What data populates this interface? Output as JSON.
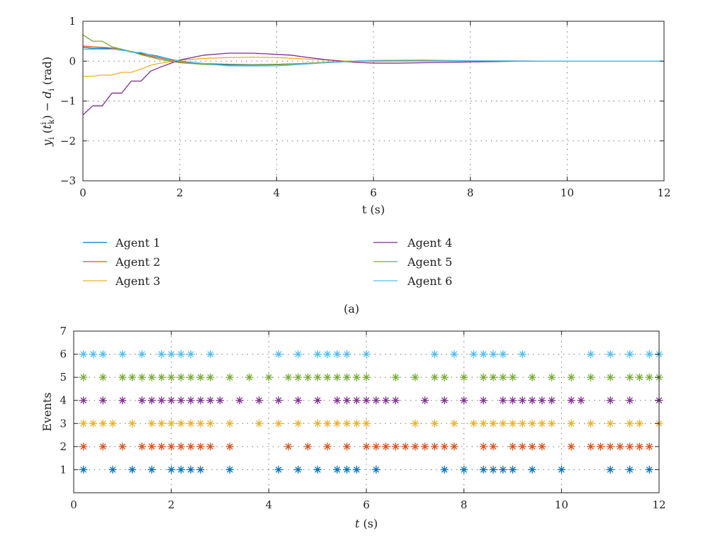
{
  "chart_data": [
    {
      "type": "line",
      "panel_caption": "(a)",
      "xlabel": "t (s)",
      "ylabel": "y_i(t_k^i) − d_i (rad)",
      "ylabel_parts": {
        "y": "y",
        "i": "i",
        "t": "t",
        "sup": "i",
        "sub": "k",
        "rest": ") − ",
        "d": "d",
        "di": "i",
        "unit": " (rad)"
      },
      "xlim": [
        0,
        12
      ],
      "ylim": [
        -3,
        1
      ],
      "xticks": [
        0,
        2,
        4,
        6,
        8,
        10,
        12
      ],
      "yticks": [
        1,
        0,
        -1,
        -2,
        -3
      ],
      "ytick_labels": [
        "1",
        "0",
        "−1",
        "−2",
        "−3"
      ],
      "grid": true,
      "legend_position": "below, two columns",
      "series": [
        {
          "name": "Agent 1",
          "color": "#0072BD",
          "x": [
            0,
            0.2,
            0.5,
            0.8,
            1.0,
            1.2,
            1.5,
            1.7,
            2.0,
            2.5,
            3.0,
            3.5,
            4.0,
            4.5,
            5.0,
            5.5,
            6.0,
            7.0,
            8.0,
            10.0,
            12.0
          ],
          "y": [
            0.35,
            0.32,
            0.32,
            0.28,
            0.24,
            0.2,
            0.14,
            0.08,
            0.0,
            -0.06,
            -0.08,
            -0.09,
            -0.08,
            -0.06,
            -0.03,
            0.0,
            0.01,
            0.01,
            0.0,
            0.0,
            0.0
          ]
        },
        {
          "name": "Agent 2",
          "color": "#D95319",
          "x": [
            0,
            0.2,
            0.5,
            0.8,
            1.0,
            1.2,
            1.5,
            1.7,
            2.0,
            2.5,
            3.0,
            3.5,
            4.0,
            4.5,
            5.0,
            5.5,
            6.0,
            7.0,
            8.0,
            10.0,
            12.0
          ],
          "y": [
            0.38,
            0.36,
            0.34,
            0.3,
            0.24,
            0.18,
            0.1,
            0.05,
            -0.02,
            -0.08,
            -0.1,
            -0.1,
            -0.09,
            -0.07,
            -0.04,
            -0.01,
            0.01,
            0.01,
            0.0,
            0.0,
            0.0
          ]
        },
        {
          "name": "Agent 3",
          "color": "#EDB120",
          "x": [
            0,
            0.2,
            0.4,
            0.6,
            0.8,
            1.0,
            1.2,
            1.4,
            1.6,
            2.0,
            2.5,
            3.0,
            3.5,
            4.0,
            4.5,
            5.0,
            5.5,
            6.0,
            7.0,
            8.0,
            10.0,
            12.0
          ],
          "y": [
            -0.38,
            -0.38,
            -0.35,
            -0.35,
            -0.28,
            -0.28,
            -0.2,
            -0.1,
            -0.05,
            0.02,
            0.07,
            0.09,
            0.1,
            0.09,
            0.06,
            0.03,
            0.0,
            -0.01,
            0.0,
            0.0,
            0.0,
            0.0
          ]
        },
        {
          "name": "Agent 4",
          "color": "#7E2F8E",
          "x": [
            0,
            0.2,
            0.4,
            0.6,
            0.8,
            1.0,
            1.2,
            1.4,
            1.6,
            1.8,
            2.0,
            2.5,
            3.0,
            3.5,
            4.0,
            4.3,
            4.6,
            5.0,
            5.5,
            6.0,
            6.5,
            7.0,
            8.0,
            9.0,
            10.0,
            12.0
          ],
          "y": [
            -1.35,
            -1.12,
            -1.12,
            -0.8,
            -0.8,
            -0.5,
            -0.5,
            -0.25,
            -0.15,
            -0.06,
            0.03,
            0.15,
            0.2,
            0.2,
            0.17,
            0.15,
            0.1,
            0.04,
            -0.02,
            -0.05,
            -0.05,
            -0.04,
            -0.02,
            0.0,
            0.0,
            0.0
          ]
        },
        {
          "name": "Agent 5",
          "color": "#77AC30",
          "x": [
            0,
            0.2,
            0.4,
            0.6,
            0.8,
            1.0,
            1.2,
            1.4,
            1.6,
            2.0,
            2.5,
            3.0,
            3.5,
            4.0,
            4.5,
            5.0,
            5.5,
            6.0,
            7.0,
            8.0,
            10.0,
            12.0
          ],
          "y": [
            0.66,
            0.5,
            0.5,
            0.36,
            0.3,
            0.24,
            0.16,
            0.1,
            0.04,
            -0.04,
            -0.08,
            -0.1,
            -0.1,
            -0.09,
            -0.06,
            -0.03,
            0.0,
            0.02,
            0.02,
            0.01,
            0.0,
            0.0
          ]
        },
        {
          "name": "Agent 6",
          "color": "#4DBEEE",
          "x": [
            0,
            0.2,
            0.4,
            0.6,
            0.8,
            1.0,
            1.2,
            1.4,
            1.6,
            2.0,
            2.5,
            3.0,
            3.5,
            4.0,
            4.5,
            5.0,
            5.5,
            6.0,
            7.0,
            8.0,
            10.0,
            12.0
          ],
          "y": [
            0.3,
            0.3,
            0.3,
            0.3,
            0.3,
            0.22,
            0.22,
            0.15,
            0.1,
            0.0,
            -0.06,
            -0.12,
            -0.12,
            -0.12,
            -0.08,
            -0.04,
            -0.01,
            0.02,
            0.03,
            0.01,
            0.0,
            0.0
          ]
        }
      ]
    },
    {
      "type": "scatter",
      "xlabel": "t (s)",
      "ylabel": "Events",
      "xlim": [
        0,
        12
      ],
      "ylim": [
        0,
        7
      ],
      "xticks": [
        0,
        2,
        4,
        6,
        8,
        10,
        12
      ],
      "yticks": [
        1,
        2,
        3,
        4,
        5,
        6,
        7
      ],
      "grid": true,
      "marker": "*",
      "series": [
        {
          "name": "Agent 1",
          "color": "#0072BD",
          "y": 1,
          "x": [
            0.2,
            0.8,
            1.2,
            1.6,
            2.0,
            2.2,
            2.4,
            2.6,
            3.2,
            4.2,
            4.6,
            5.0,
            5.4,
            5.6,
            5.8,
            6.2,
            7.6,
            8.0,
            8.4,
            8.6,
            8.8,
            9.0,
            9.4,
            10.0,
            11.0,
            11.4,
            11.8
          ]
        },
        {
          "name": "Agent 2",
          "color": "#D95319",
          "y": 2,
          "x": [
            0.2,
            0.6,
            1.0,
            1.4,
            1.6,
            1.8,
            2.0,
            2.2,
            2.4,
            2.6,
            2.8,
            3.2,
            4.4,
            4.8,
            5.2,
            5.6,
            6.0,
            6.2,
            6.4,
            6.6,
            6.8,
            7.0,
            7.2,
            7.4,
            7.6,
            7.8,
            8.4,
            8.6,
            9.0,
            9.2,
            9.4,
            9.6,
            10.2,
            10.6,
            10.8,
            11.0,
            11.2,
            11.4,
            11.6,
            11.8
          ]
        },
        {
          "name": "Agent 3",
          "color": "#EDB120",
          "y": 3,
          "x": [
            0.2,
            0.4,
            0.6,
            0.8,
            1.2,
            1.6,
            1.8,
            2.0,
            2.2,
            2.4,
            2.6,
            2.8,
            3.2,
            3.8,
            4.2,
            4.6,
            5.0,
            5.2,
            5.4,
            5.6,
            5.8,
            6.0,
            7.0,
            7.4,
            7.8,
            8.2,
            8.4,
            8.6,
            8.8,
            9.0,
            9.2,
            9.4,
            9.6,
            9.8,
            10.2,
            10.6,
            11.0,
            11.4,
            11.6,
            12.0
          ]
        },
        {
          "name": "Agent 4",
          "color": "#7E2F8E",
          "y": 4,
          "x": [
            0.2,
            0.6,
            1.0,
            1.4,
            1.6,
            1.8,
            2.0,
            2.2,
            2.4,
            2.6,
            2.8,
            3.0,
            3.4,
            3.8,
            4.2,
            4.6,
            5.0,
            5.4,
            5.6,
            5.8,
            6.0,
            6.2,
            6.4,
            6.6,
            7.2,
            7.6,
            8.0,
            8.4,
            8.8,
            9.0,
            9.2,
            9.4,
            9.6,
            9.8,
            10.2,
            10.4,
            11.0,
            11.4,
            12.0
          ]
        },
        {
          "name": "Agent 5",
          "color": "#77AC30",
          "y": 5,
          "x": [
            0.2,
            0.6,
            1.0,
            1.2,
            1.4,
            1.6,
            1.8,
            2.0,
            2.2,
            2.4,
            2.6,
            2.8,
            3.2,
            3.6,
            4.0,
            4.4,
            4.6,
            4.8,
            5.0,
            5.2,
            5.4,
            5.6,
            5.8,
            6.0,
            6.6,
            7.0,
            7.4,
            7.6,
            8.0,
            8.4,
            8.6,
            8.8,
            9.0,
            9.4,
            9.8,
            10.2,
            10.6,
            11.0,
            11.4,
            11.6,
            11.8,
            12.0
          ]
        },
        {
          "name": "Agent 6",
          "color": "#4DBEEE",
          "y": 6,
          "x": [
            0.2,
            0.4,
            0.6,
            1.0,
            1.4,
            1.8,
            2.0,
            2.2,
            2.4,
            2.8,
            4.2,
            4.6,
            5.0,
            5.2,
            5.4,
            5.6,
            6.0,
            7.4,
            7.8,
            8.2,
            8.4,
            8.6,
            8.8,
            9.2,
            10.6,
            11.0,
            11.4,
            11.8,
            12.0
          ]
        }
      ]
    }
  ]
}
